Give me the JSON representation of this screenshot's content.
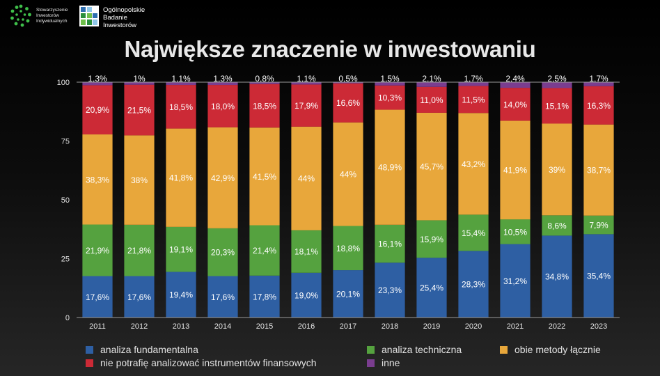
{
  "logos": {
    "sii": {
      "text": "Stowarzyszenie\nInwestorów\nIndywidualnych"
    },
    "obi": {
      "text": "Ogólnopolskie\nBadanie\nInwestorów"
    }
  },
  "title": "Największe znaczenie w inwestowaniu",
  "chart_data": {
    "type": "bar",
    "stacked": true,
    "categories": [
      "2011",
      "2012",
      "2013",
      "2014",
      "2015",
      "2016",
      "2017",
      "2018",
      "2019",
      "2020",
      "2021",
      "2022",
      "2023"
    ],
    "ylim": [
      0,
      100
    ],
    "yticks": [
      "0",
      "25",
      "50",
      "75",
      "100"
    ],
    "grid": false,
    "legend_position": "bottom",
    "series": [
      {
        "name": "analiza fundamentalna",
        "color": "#2e5fa3",
        "values": [
          17.6,
          17.6,
          19.4,
          17.6,
          17.8,
          19.0,
          20.1,
          23.3,
          25.4,
          28.3,
          31.2,
          34.8,
          35.4
        ],
        "labels": [
          "17,6%",
          "17,6%",
          "19,4%",
          "17,6%",
          "17,8%",
          "19,0%",
          "20,1%",
          "23,3%",
          "25,4%",
          "28,3%",
          "31,2%",
          "34,8%",
          "35,4%"
        ]
      },
      {
        "name": "analiza techniczna",
        "color": "#55a23f",
        "values": [
          21.9,
          21.8,
          19.1,
          20.3,
          21.4,
          18.1,
          18.8,
          16.1,
          15.9,
          15.4,
          10.5,
          8.6,
          7.9
        ],
        "labels": [
          "21,9%",
          "21,8%",
          "19,1%",
          "20,3%",
          "21,4%",
          "18,1%",
          "18,8%",
          "16,1%",
          "15,9%",
          "15,4%",
          "10,5%",
          "8,6%",
          "7,9%"
        ]
      },
      {
        "name": "obie metody łącznie",
        "color": "#e8a73b",
        "values": [
          38.3,
          38,
          41.8,
          42.9,
          41.5,
          44,
          44,
          48.9,
          45.7,
          43.2,
          41.9,
          39,
          38.7
        ],
        "labels": [
          "38,3%",
          "38%",
          "41,8%",
          "42,9%",
          "41,5%",
          "44%",
          "44%",
          "48,9%",
          "45,7%",
          "43,2%",
          "41,9%",
          "39%",
          "38,7%"
        ]
      },
      {
        "name": "nie potrafię analizować instrumentów finansowych",
        "color": "#cc2a36",
        "values": [
          20.9,
          21.5,
          18.5,
          18.0,
          18.5,
          17.9,
          16.6,
          10.3,
          11.0,
          11.5,
          14.0,
          15.1,
          16.3
        ],
        "labels": [
          "20,9%",
          "21,5%",
          "18,5%",
          "18,0%",
          "18,5%",
          "17,9%",
          "16,6%",
          "10,3%",
          "11,0%",
          "11,5%",
          "14,0%",
          "15,1%",
          "16,3%"
        ]
      },
      {
        "name": "inne",
        "color": "#7a3d8f",
        "values": [
          1.3,
          1,
          1.1,
          1.3,
          0.8,
          1.1,
          0.5,
          1.5,
          2.1,
          1.7,
          2.4,
          2.5,
          1.7
        ],
        "labels": [
          "1,3%",
          "1%",
          "1,1%",
          "1,3%",
          "0,8%",
          "1,1%",
          "0,5%",
          "1,5%",
          "2,1%",
          "1,7%",
          "2,4%",
          "2,5%",
          "1,7%"
        ]
      }
    ]
  }
}
